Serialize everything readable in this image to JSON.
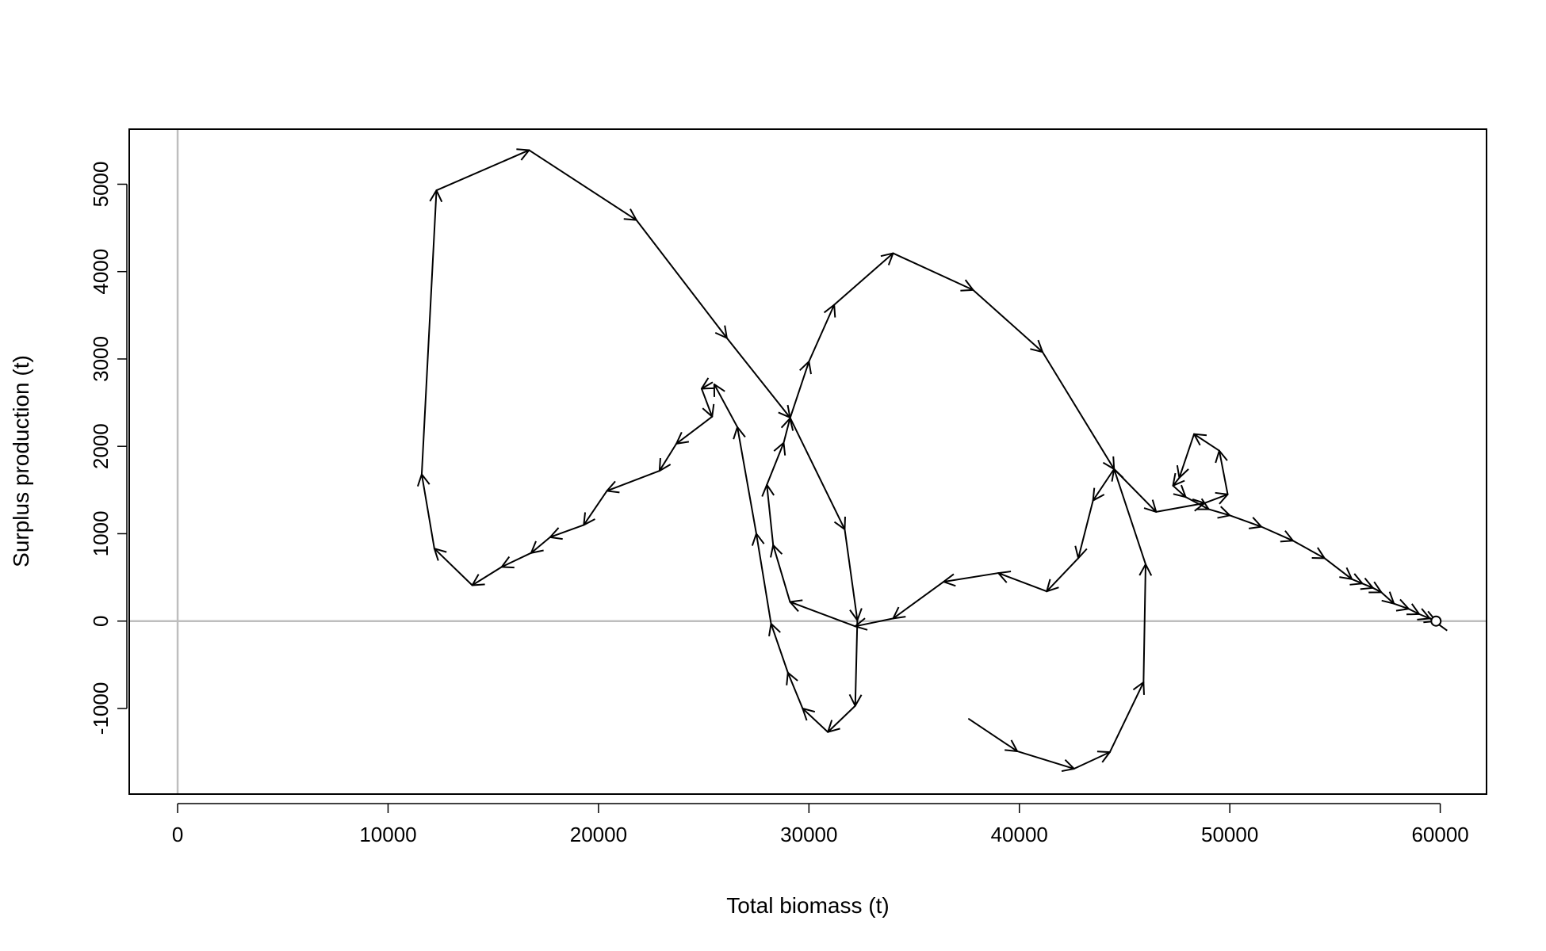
{
  "chart_data": {
    "type": "line",
    "subtype": "phase-plot with arrows",
    "xlabel": "Total biomass (t)",
    "ylabel": "Surplus production (t)",
    "xlim": [
      -2300,
      62200
    ],
    "ylim": [
      -1980,
      5630
    ],
    "x_ticks": [
      0,
      10000,
      20000,
      30000,
      40000,
      50000,
      60000
    ],
    "y_ticks": [
      -1000,
      0,
      1000,
      2000,
      3000,
      4000,
      5000
    ],
    "x_tick_labels": [
      "0",
      "10000",
      "20000",
      "30000",
      "40000",
      "50000",
      "60000"
    ],
    "y_tick_labels": [
      "-1000",
      "0",
      "1000",
      "2000",
      "3000",
      "4000",
      "5000"
    ],
    "reference_lines": {
      "horizontal": 0,
      "vertical": 0,
      "color": "#bebebe"
    },
    "grid": false,
    "line_color": "#000000",
    "end_marker": "open circle",
    "series": [
      {
        "points": [
          [
            37600,
            -1120
          ],
          [
            39900,
            -1490
          ],
          [
            42600,
            -1690
          ],
          [
            44300,
            -1500
          ],
          [
            45900,
            -700
          ],
          [
            46000,
            650
          ],
          [
            44500,
            1740
          ],
          [
            43500,
            1380
          ],
          [
            42800,
            720
          ],
          [
            41300,
            340
          ],
          [
            39000,
            550
          ],
          [
            36400,
            450
          ],
          [
            34000,
            30
          ],
          [
            32200,
            -60
          ],
          [
            29100,
            220
          ],
          [
            28300,
            870
          ],
          [
            28000,
            1560
          ],
          [
            28800,
            2040
          ],
          [
            29100,
            2320
          ],
          [
            30000,
            2970
          ],
          [
            31200,
            3620
          ],
          [
            34000,
            4210
          ],
          [
            37800,
            3790
          ],
          [
            41100,
            3080
          ],
          [
            44500,
            1740
          ],
          [
            46500,
            1250
          ],
          [
            48800,
            1350
          ],
          [
            49900,
            1450
          ],
          [
            49500,
            1950
          ],
          [
            48300,
            2140
          ],
          [
            47600,
            1640
          ],
          [
            47300,
            1550
          ],
          [
            47900,
            1420
          ],
          [
            49000,
            1280
          ],
          [
            50000,
            1210
          ],
          [
            51500,
            1080
          ],
          [
            53000,
            920
          ],
          [
            54500,
            720
          ],
          [
            55800,
            480
          ],
          [
            56300,
            430
          ],
          [
            56800,
            380
          ],
          [
            57200,
            330
          ],
          [
            57800,
            200
          ],
          [
            58500,
            140
          ],
          [
            59000,
            80
          ],
          [
            59500,
            30
          ],
          [
            59800,
            0
          ]
        ]
      },
      {
        "points": [
          [
            25400,
            2730
          ],
          [
            24900,
            2660
          ],
          [
            25400,
            2340
          ],
          [
            23700,
            2030
          ],
          [
            22900,
            1720
          ],
          [
            20400,
            1490
          ],
          [
            19300,
            1100
          ],
          [
            17700,
            960
          ],
          [
            16800,
            780
          ],
          [
            15400,
            620
          ],
          [
            14000,
            410
          ],
          [
            12200,
            830
          ],
          [
            11600,
            1680
          ],
          [
            12300,
            4930
          ],
          [
            16700,
            5390
          ],
          [
            21800,
            4590
          ],
          [
            26100,
            3240
          ],
          [
            29100,
            2330
          ],
          [
            31700,
            1050
          ],
          [
            32300,
            10
          ],
          [
            32200,
            -970
          ],
          [
            30900,
            -1270
          ],
          [
            29700,
            -1000
          ],
          [
            29000,
            -590
          ],
          [
            28200,
            -30
          ],
          [
            27500,
            1000
          ],
          [
            26600,
            2220
          ],
          [
            25500,
            2710
          ]
        ]
      }
    ]
  }
}
